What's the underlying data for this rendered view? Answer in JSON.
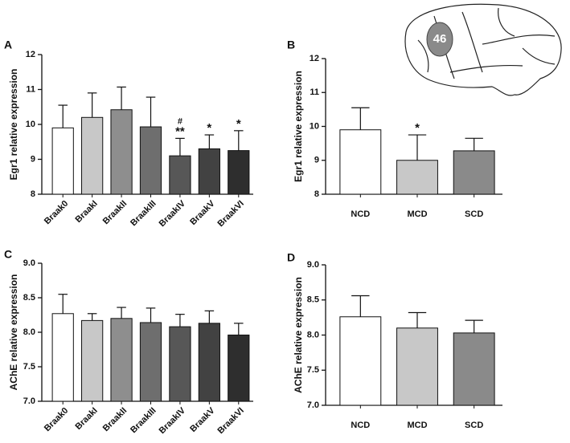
{
  "chart_data": [
    {
      "type": "bar",
      "panel_label": "A",
      "y_label": "Egr1 relative expression",
      "categories": [
        "Braak0",
        "BraakI",
        "BraakII",
        "BraakIII",
        "BraakIV",
        "BraakV",
        "BraakVI"
      ],
      "values": [
        9.9,
        10.2,
        10.42,
        9.93,
        9.1,
        9.3,
        9.25
      ],
      "errors": [
        0.65,
        0.7,
        0.65,
        0.85,
        0.5,
        0.4,
        0.57
      ],
      "colors": [
        "#ffffff",
        "#c8c8c8",
        "#8e8e8e",
        "#6e6e6e",
        "#575757",
        "#424242",
        "#2e2e2e"
      ],
      "ylim": [
        8,
        12
      ],
      "yticks": [
        8,
        9,
        10,
        11,
        12
      ],
      "xtick_rotation": 45,
      "annotations": [
        {
          "category": "BraakIV",
          "text": "**"
        },
        {
          "category": "BraakIV",
          "text": "#"
        },
        {
          "category": "BraakV",
          "text": "*"
        },
        {
          "category": "BraakVI",
          "text": "*"
        }
      ]
    },
    {
      "type": "bar",
      "panel_label": "B",
      "y_label": "Egr1 relative expression",
      "inset_label": "46",
      "categories": [
        "NCD",
        "MCD",
        "SCD"
      ],
      "values": [
        9.9,
        9.0,
        9.28
      ],
      "errors": [
        0.65,
        0.75,
        0.37
      ],
      "colors": [
        "#ffffff",
        "#c8c8c8",
        "#8a8a8a"
      ],
      "ylim": [
        8,
        12
      ],
      "yticks": [
        8,
        9,
        10,
        11,
        12
      ],
      "xtick_rotation": 0,
      "annotations": [
        {
          "category": "MCD",
          "text": "*"
        }
      ]
    },
    {
      "type": "bar",
      "panel_label": "C",
      "y_label": "AChE relative expression",
      "categories": [
        "Braak0",
        "BraakI",
        "BraakII",
        "BraakIII",
        "BraakIV",
        "BraakV",
        "BraakVI"
      ],
      "values": [
        8.27,
        8.17,
        8.2,
        8.14,
        8.08,
        8.13,
        7.96
      ],
      "errors": [
        0.28,
        0.1,
        0.16,
        0.21,
        0.18,
        0.18,
        0.17
      ],
      "colors": [
        "#ffffff",
        "#c8c8c8",
        "#8e8e8e",
        "#6e6e6e",
        "#575757",
        "#424242",
        "#2e2e2e"
      ],
      "ylim": [
        7,
        9
      ],
      "yticks": [
        {
          "value": 7,
          "label": "7.0"
        },
        7.5,
        {
          "value": 8,
          "label": "8.0"
        },
        8.5,
        {
          "value": 9,
          "label": "9.0"
        }
      ],
      "xtick_rotation": 45,
      "annotations": []
    },
    {
      "type": "bar",
      "panel_label": "D",
      "y_label": "AChE relative expression",
      "categories": [
        "NCD",
        "MCD",
        "SCD"
      ],
      "values": [
        8.26,
        8.1,
        8.03
      ],
      "errors": [
        0.3,
        0.22,
        0.18
      ],
      "colors": [
        "#ffffff",
        "#c8c8c8",
        "#8a8a8a"
      ],
      "ylim": [
        7,
        9
      ],
      "yticks": [
        {
          "value": 7,
          "label": "7.0"
        },
        7.5,
        {
          "value": 8,
          "label": "8.0"
        },
        8.5,
        {
          "value": 9,
          "label": "9.0"
        }
      ],
      "xtick_rotation": 0,
      "annotations": []
    }
  ]
}
